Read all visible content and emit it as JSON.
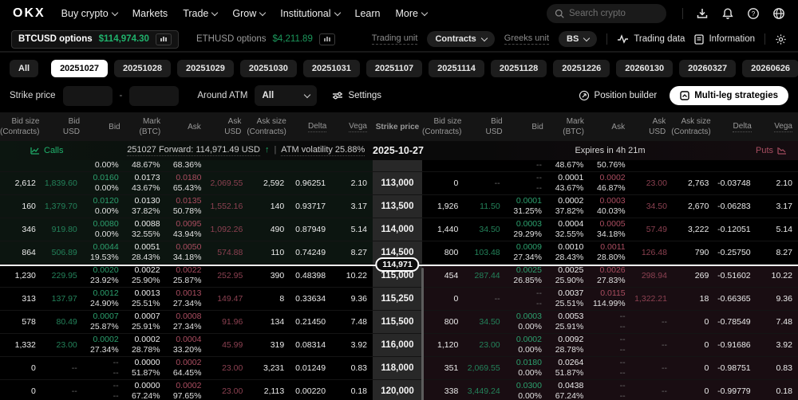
{
  "nav": {
    "logo": "OKX",
    "items": [
      {
        "label": "Buy crypto",
        "caret": true
      },
      {
        "label": "Markets",
        "caret": false
      },
      {
        "label": "Trade",
        "caret": true
      },
      {
        "label": "Grow",
        "caret": true
      },
      {
        "label": "Institutional",
        "caret": true
      },
      {
        "label": "Learn",
        "caret": false
      },
      {
        "label": "More",
        "caret": true
      }
    ],
    "search_placeholder": "Search crypto"
  },
  "subheader": {
    "instruments": [
      {
        "name": "BTCUSD options",
        "price": "$114,974.30"
      },
      {
        "name": "ETHUSD options",
        "price": "$4,211.89"
      }
    ],
    "trading_unit_label": "Trading unit",
    "trading_unit_value": "Contracts",
    "greeks_unit_label": "Greeks unit",
    "greeks_unit_value": "BS",
    "trading_data_label": "Trading data",
    "information_label": "Information"
  },
  "filters": {
    "all_tab": "All",
    "dates": [
      "20251027",
      "20251028",
      "20251029",
      "20251030",
      "20251031",
      "20251107",
      "20251114",
      "20251128",
      "20251226",
      "20260130",
      "20260327",
      "20260626",
      "20260925"
    ],
    "active_date": "20251027",
    "strike_price_label": "Strike price",
    "range_separator": "-",
    "around_atm_label": "Around ATM",
    "around_atm_value": "All",
    "settings_label": "Settings",
    "position_builder_label": "Position builder",
    "multi_leg_label": "Multi-leg strategies",
    "more_dates_glyph": "⋮"
  },
  "table": {
    "headers": [
      [
        "Bid size",
        "(Contracts)"
      ],
      [
        "Bid",
        "USD"
      ],
      [
        "Bid",
        ""
      ],
      [
        "Mark",
        "(BTC)"
      ],
      [
        "Ask",
        ""
      ],
      [
        "Ask",
        "USD"
      ],
      [
        "Ask size",
        "(Contracts)"
      ],
      [
        "Delta",
        ""
      ],
      [
        "Vega",
        ""
      ]
    ],
    "strike_header": "Strike price",
    "calls_label": "Calls",
    "puts_label": "Puts",
    "forward_text": "251027 Forward: 114,971.49 USD",
    "forward_arrow": "↑",
    "separator": "|",
    "atm_volatility": "ATM volatility 25.88%",
    "expiry_date": "2025-10-27",
    "expires_in": "Expires in 4h 21m",
    "mark_price": "114,971",
    "rows": [
      {
        "partial": true,
        "strike": "",
        "call_itm": true,
        "put_itm": false,
        "call": {
          "size": "",
          "usd": "",
          "bid": [
            "",
            "0.00%"
          ],
          "mark": [
            "",
            "48.67%"
          ],
          "ask": [
            "",
            "68.36%"
          ],
          "ask_usd": "",
          "ask_size": "",
          "delta": "",
          "vega": ""
        },
        "put": {
          "size": "",
          "usd": "",
          "bid": [
            "",
            "--"
          ],
          "mark": [
            "",
            "48.67%"
          ],
          "ask": [
            "",
            "50.76%"
          ],
          "ask_usd": "",
          "ask_size": "",
          "delta": "",
          "vega": ""
        }
      },
      {
        "strike": "113,000",
        "call_itm": true,
        "put_itm": false,
        "call": {
          "size": "2,612",
          "usd": "1,839.60",
          "bid": [
            "0.0160",
            "0.00%"
          ],
          "mark": [
            "0.0173",
            "43.67%"
          ],
          "ask": [
            "0.0180",
            "65.43%"
          ],
          "ask_usd": "2,069.55",
          "ask_size": "2,592",
          "delta": "0.96251",
          "vega": "2.10"
        },
        "put": {
          "size": "0",
          "usd": "--",
          "bid": [
            "--",
            "--"
          ],
          "mark": [
            "0.0001",
            "43.67%"
          ],
          "ask": [
            "0.0002",
            "46.87%"
          ],
          "ask_usd": "23.00",
          "ask_size": "2,763",
          "delta": "-0.03748",
          "vega": "2.10"
        }
      },
      {
        "strike": "113,500",
        "call_itm": true,
        "put_itm": false,
        "call": {
          "size": "160",
          "usd": "1,379.70",
          "bid": [
            "0.0120",
            "0.00%"
          ],
          "mark": [
            "0.0130",
            "37.82%"
          ],
          "ask": [
            "0.0135",
            "50.78%"
          ],
          "ask_usd": "1,552.16",
          "ask_size": "140",
          "delta": "0.93717",
          "vega": "3.17"
        },
        "put": {
          "size": "1,926",
          "usd": "11.50",
          "bid": [
            "0.0001",
            "31.25%"
          ],
          "mark": [
            "0.0002",
            "37.82%"
          ],
          "ask": [
            "0.0003",
            "40.03%"
          ],
          "ask_usd": "34.50",
          "ask_size": "2,670",
          "delta": "-0.06283",
          "vega": "3.17"
        }
      },
      {
        "strike": "114,000",
        "call_itm": true,
        "put_itm": false,
        "call": {
          "size": "346",
          "usd": "919.80",
          "bid": [
            "0.0080",
            "0.00%"
          ],
          "mark": [
            "0.0088",
            "32.55%"
          ],
          "ask": [
            "0.0095",
            "43.94%"
          ],
          "ask_usd": "1,092.26",
          "ask_size": "490",
          "delta": "0.87949",
          "vega": "5.14"
        },
        "put": {
          "size": "1,440",
          "usd": "34.50",
          "bid": [
            "0.0003",
            "29.29%"
          ],
          "mark": [
            "0.0004",
            "32.55%"
          ],
          "ask": [
            "0.0005",
            "34.18%"
          ],
          "ask_usd": "57.49",
          "ask_size": "3,222",
          "delta": "-0.12051",
          "vega": "5.14"
        }
      },
      {
        "strike": "114,500",
        "call_itm": true,
        "put_itm": false,
        "call": {
          "size": "864",
          "usd": "506.89",
          "bid": [
            "0.0044",
            "19.53%"
          ],
          "mark": [
            "0.0051",
            "28.43%"
          ],
          "ask": [
            "0.0050",
            "34.18%"
          ],
          "ask_usd": "574.88",
          "ask_size": "110",
          "delta": "0.74249",
          "vega": "8.27"
        },
        "put": {
          "size": "800",
          "usd": "103.48",
          "bid": [
            "0.0009",
            "27.34%"
          ],
          "mark": [
            "0.0010",
            "28.43%"
          ],
          "ask": [
            "0.0011",
            "28.80%"
          ],
          "ask_usd": "126.48",
          "ask_size": "790",
          "delta": "-0.25750",
          "vega": "8.27"
        }
      },
      {
        "strike": "115,000",
        "call_itm": false,
        "put_itm": true,
        "call": {
          "size": "1,230",
          "usd": "229.95",
          "bid": [
            "0.0020",
            "23.92%"
          ],
          "mark": [
            "0.0022",
            "25.90%"
          ],
          "ask": [
            "0.0022",
            "25.87%"
          ],
          "ask_usd": "252.95",
          "ask_size": "390",
          "delta": "0.48398",
          "vega": "10.22"
        },
        "put": {
          "size": "454",
          "usd": "287.44",
          "bid": [
            "0.0025",
            "26.85%"
          ],
          "mark": [
            "0.0025",
            "25.90%"
          ],
          "ask": [
            "0.0026",
            "27.83%"
          ],
          "ask_usd": "298.94",
          "ask_size": "269",
          "delta": "-0.51602",
          "vega": "10.22"
        }
      },
      {
        "strike": "115,250",
        "call_itm": false,
        "put_itm": true,
        "call": {
          "size": "313",
          "usd": "137.97",
          "bid": [
            "0.0012",
            "24.90%"
          ],
          "mark": [
            "0.0013",
            "25.51%"
          ],
          "ask": [
            "0.0013",
            "27.34%"
          ],
          "ask_usd": "149.47",
          "ask_size": "8",
          "delta": "0.33634",
          "vega": "9.36"
        },
        "put": {
          "size": "0",
          "usd": "--",
          "bid": [
            "--",
            "--"
          ],
          "mark": [
            "0.0037",
            "25.51%"
          ],
          "ask": [
            "0.0115",
            "114.99%"
          ],
          "ask_usd": "1,322.21",
          "ask_size": "18",
          "delta": "-0.66365",
          "vega": "9.36"
        }
      },
      {
        "strike": "115,500",
        "call_itm": false,
        "put_itm": true,
        "call": {
          "size": "578",
          "usd": "80.49",
          "bid": [
            "0.0007",
            "25.87%"
          ],
          "mark": [
            "0.0007",
            "25.91%"
          ],
          "ask": [
            "0.0008",
            "27.34%"
          ],
          "ask_usd": "91.96",
          "ask_size": "134",
          "delta": "0.21450",
          "vega": "7.48"
        },
        "put": {
          "size": "800",
          "usd": "34.50",
          "bid": [
            "0.0003",
            "0.00%"
          ],
          "mark": [
            "0.0053",
            "25.91%"
          ],
          "ask": [
            "--",
            "--"
          ],
          "ask_usd": "--",
          "ask_size": "0",
          "delta": "-0.78549",
          "vega": "7.48"
        }
      },
      {
        "strike": "116,000",
        "call_itm": false,
        "put_itm": true,
        "call": {
          "size": "1,332",
          "usd": "23.00",
          "bid": [
            "0.0002",
            "27.34%"
          ],
          "mark": [
            "0.0002",
            "28.78%"
          ],
          "ask": [
            "0.0004",
            "33.20%"
          ],
          "ask_usd": "45.99",
          "ask_size": "319",
          "delta": "0.08314",
          "vega": "3.92"
        },
        "put": {
          "size": "1,120",
          "usd": "23.00",
          "bid": [
            "0.0002",
            "0.00%"
          ],
          "mark": [
            "0.0092",
            "28.78%"
          ],
          "ask": [
            "--",
            "--"
          ],
          "ask_usd": "--",
          "ask_size": "0",
          "delta": "-0.91686",
          "vega": "3.92"
        }
      },
      {
        "strike": "118,000",
        "call_itm": false,
        "put_itm": true,
        "call": {
          "size": "0",
          "usd": "--",
          "bid": [
            "--",
            "--"
          ],
          "mark": [
            "0.0000",
            "51.87%"
          ],
          "ask": [
            "0.0002",
            "64.45%"
          ],
          "ask_usd": "23.00",
          "ask_size": "3,231",
          "delta": "0.01249",
          "vega": "0.83"
        },
        "put": {
          "size": "351",
          "usd": "2,069.55",
          "bid": [
            "0.0180",
            "0.00%"
          ],
          "mark": [
            "0.0264",
            "51.87%"
          ],
          "ask": [
            "--",
            "--"
          ],
          "ask_usd": "--",
          "ask_size": "0",
          "delta": "-0.98751",
          "vega": "0.83"
        }
      },
      {
        "strike": "120,000",
        "call_itm": false,
        "put_itm": true,
        "call": {
          "size": "0",
          "usd": "--",
          "bid": [
            "--",
            "--"
          ],
          "mark": [
            "0.0000",
            "67.24%"
          ],
          "ask": [
            "0.0002",
            "97.65%"
          ],
          "ask_usd": "23.00",
          "ask_size": "2,113",
          "delta": "0.00220",
          "vega": "0.18"
        },
        "put": {
          "size": "338",
          "usd": "3,449.24",
          "bid": [
            "0.0300",
            "0.00%"
          ],
          "mark": [
            "0.0438",
            "67.24%"
          ],
          "ask": [
            "--",
            "--"
          ],
          "ask_usd": "--",
          "ask_size": "0",
          "delta": "-0.99779",
          "vega": "0.18"
        }
      }
    ]
  },
  "colors": {
    "green": "#20b26c",
    "red": "#aa4d60",
    "active_tab_bg": "#ffffff"
  }
}
